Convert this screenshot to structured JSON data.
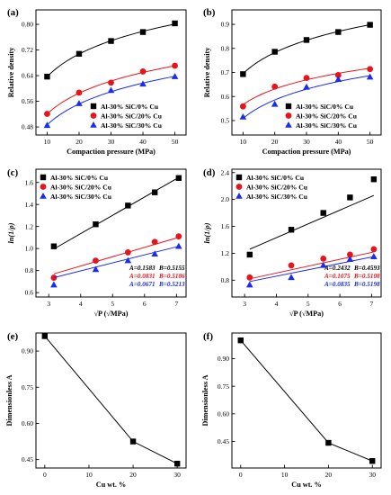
{
  "colors": {
    "black": "#000000",
    "red": "#e8141b",
    "blue": "#1a2cf0"
  },
  "chart_data": [
    {
      "id": "a",
      "panel_label": "(a)",
      "type": "scatter",
      "xlabel": "Compaction pressure (MPa)",
      "ylabel": "Relative density",
      "xlim": [
        6.5,
        53.5
      ],
      "ylim": [
        0.455,
        0.845
      ],
      "xticks": [
        10,
        20,
        30,
        40,
        50
      ],
      "xtick_labels": [
        "10",
        "20",
        "30",
        "40",
        "50"
      ],
      "yticks": [
        0.48,
        0.56,
        0.64,
        0.72,
        0.8
      ],
      "ytick_labels": [
        "0.48",
        "0.56",
        "0.64",
        "0.72",
        "0.80"
      ],
      "fit_style": "curve",
      "legend_position": "bottom-right",
      "x": [
        10,
        20,
        30,
        40,
        50
      ],
      "series": [
        {
          "name": "Al-30% SiC/0% Cu",
          "marker": "square",
          "color": "#000000",
          "values": [
            0.637,
            0.708,
            0.748,
            0.776,
            0.803
          ]
        },
        {
          "name": "Al-30% SiC/20% Cu",
          "marker": "circle",
          "color": "#e8141b",
          "values": [
            0.521,
            0.587,
            0.618,
            0.653,
            0.671
          ]
        },
        {
          "name": "Al-30% SiC/30% Cu",
          "marker": "triangle",
          "color": "#1a2cf0",
          "values": [
            0.485,
            0.553,
            0.594,
            0.614,
            0.637
          ]
        }
      ]
    },
    {
      "id": "b",
      "panel_label": "(b)",
      "type": "scatter",
      "xlabel": "Compaction pressure (MPa)",
      "ylabel": "Relative density",
      "xlim": [
        6.5,
        53.5
      ],
      "ylim": [
        0.44,
        0.96
      ],
      "xticks": [
        10,
        20,
        30,
        40,
        50
      ],
      "xtick_labels": [
        "10",
        "20",
        "30",
        "40",
        "50"
      ],
      "yticks": [
        0.5,
        0.6,
        0.7,
        0.8,
        0.9
      ],
      "ytick_labels": [
        "0.5",
        "0.6",
        "0.7",
        "0.8",
        "0.9"
      ],
      "fit_style": "curve",
      "legend_position": "bottom-right",
      "x": [
        10,
        20,
        30,
        40,
        50
      ],
      "series": [
        {
          "name": "Al-30% SiC/0% Cu",
          "marker": "square",
          "color": "#000000",
          "values": [
            0.693,
            0.786,
            0.835,
            0.868,
            0.898
          ]
        },
        {
          "name": "Al-30% SiC/20% Cu",
          "marker": "circle",
          "color": "#e8141b",
          "values": [
            0.559,
            0.641,
            0.677,
            0.689,
            0.714
          ]
        },
        {
          "name": "Al-30% SiC/30% Cu",
          "marker": "triangle",
          "color": "#1a2cf0",
          "values": [
            0.515,
            0.568,
            0.639,
            0.671,
            0.681
          ]
        }
      ]
    },
    {
      "id": "c",
      "panel_label": "(c)",
      "type": "scatter",
      "xlabel": "√P (√MPa)",
      "ylabel": "ln(1/ρ)",
      "xlim": [
        2.6,
        7.3
      ],
      "ylim": [
        0.56,
        1.72
      ],
      "xticks": [
        3,
        4,
        5,
        6,
        7
      ],
      "xtick_labels": [
        "3",
        "4",
        "5",
        "6",
        "7"
      ],
      "yticks": [
        0.6,
        0.8,
        1.0,
        1.2,
        1.4,
        1.6
      ],
      "ytick_labels": [
        "0.6",
        "0.8",
        "1.0",
        "1.2",
        "1.4",
        "1.6"
      ],
      "fit_style": "linear",
      "legend_position": "top-left",
      "x": [
        3.16,
        4.47,
        5.48,
        6.32,
        7.07
      ],
      "series": [
        {
          "name": "Al-30% SiC/0% Cu",
          "marker": "square",
          "color": "#000000",
          "values": [
            1.02,
            1.22,
            1.39,
            1.51,
            1.64
          ],
          "fit": [
            0.996,
            1.645
          ]
        },
        {
          "name": "Al-30% SiC/20% Cu",
          "marker": "circle",
          "color": "#e8141b",
          "values": [
            0.735,
            0.89,
            0.965,
            1.06,
            1.11
          ],
          "fit": [
            0.77,
            1.101
          ]
        },
        {
          "name": "Al-30% SiC/30% Cu",
          "marker": "triangle",
          "color": "#1a2cf0",
          "values": [
            0.67,
            0.81,
            0.89,
            0.95,
            1.02
          ],
          "fit": [
            0.736,
            1.02
          ]
        }
      ],
      "annotations": [
        {
          "A": "A=0.1583",
          "B": "B=0.5155",
          "color": "#000000"
        },
        {
          "A": "A=0.0831",
          "B": "B=0.5186",
          "color": "#e8141b"
        },
        {
          "A": "A=0.0671",
          "B": "B=0.5213",
          "color": "#1a2cf0"
        }
      ]
    },
    {
      "id": "d",
      "panel_label": "(d)",
      "type": "scatter",
      "xlabel": "√P (√MPa)",
      "ylabel": "ln(1/ρ)",
      "xlim": [
        2.6,
        7.3
      ],
      "ylim": [
        0.55,
        2.45
      ],
      "xticks": [
        3,
        4,
        5,
        6,
        7
      ],
      "xtick_labels": [
        "3",
        "4",
        "5",
        "6",
        "7"
      ],
      "yticks": [
        0.8,
        1.2,
        1.6,
        2.0,
        2.4
      ],
      "ytick_labels": [
        "0.8",
        "1.2",
        "1.6",
        "2.0",
        "2.4"
      ],
      "fit_style": "linear",
      "legend_position": "top-left",
      "x": [
        3.16,
        4.47,
        5.48,
        6.32,
        7.07
      ],
      "series": [
        {
          "name": "Al-30% SiC/0% Cu",
          "marker": "square",
          "color": "#000000",
          "values": [
            1.18,
            1.55,
            1.8,
            2.03,
            2.3
          ],
          "fit": [
            1.26,
            2.06
          ]
        },
        {
          "name": "Al-30% SiC/20% Cu",
          "marker": "circle",
          "color": "#e8141b",
          "values": [
            0.84,
            1.02,
            1.12,
            1.18,
            1.26
          ],
          "fit": [
            0.82,
            1.22
          ]
        },
        {
          "name": "Al-30% SiC/30% Cu",
          "marker": "triangle",
          "color": "#1a2cf0",
          "values": [
            0.73,
            0.84,
            1.02,
            1.11,
            1.15
          ],
          "fit": [
            0.78,
            1.15
          ]
        }
      ],
      "annotations": [
        {
          "A": "A=0.2432",
          "B": "B=0.4593",
          "color": "#000000"
        },
        {
          "A": "A=0.1075",
          "B": "B=0.5108",
          "color": "#e8141b"
        },
        {
          "A": "A=0.0835",
          "B": "B=0.5198",
          "color": "#1a2cf0"
        }
      ]
    },
    {
      "id": "e",
      "panel_label": "(e)",
      "type": "line",
      "xlabel": "Cu wt. %",
      "ylabel": "Dimensionless A",
      "xlim": [
        -2,
        32
      ],
      "ylim": [
        0.415,
        0.975
      ],
      "xticks": [
        0,
        10,
        20,
        30
      ],
      "xtick_labels": [
        "0",
        "10",
        "20",
        "30"
      ],
      "yticks": [
        0.45,
        0.6,
        0.75,
        0.9
      ],
      "ytick_labels": [
        "0.45",
        "0.60",
        "0.75",
        "0.90"
      ],
      "x": [
        0,
        20,
        30
      ],
      "series": [
        {
          "marker": "square",
          "color": "#000000",
          "values": [
            0.962,
            0.525,
            0.433
          ]
        }
      ]
    },
    {
      "id": "f",
      "panel_label": "(f)",
      "type": "line",
      "xlabel": "Cu wt. %",
      "ylabel": "Dimensionless A",
      "xlim": [
        -2,
        32
      ],
      "ylim": [
        0.305,
        1.04
      ],
      "xticks": [
        0,
        10,
        20,
        30
      ],
      "xtick_labels": [
        "0",
        "10",
        "20",
        "30"
      ],
      "yticks": [
        0.45,
        0.6,
        0.75,
        0.9
      ],
      "ytick_labels": [
        "0.45",
        "0.60",
        "0.75",
        "0.90"
      ],
      "x": [
        0,
        20,
        30
      ],
      "series": [
        {
          "marker": "square",
          "color": "#000000",
          "values": [
            1.0,
            0.442,
            0.343
          ]
        }
      ]
    }
  ]
}
